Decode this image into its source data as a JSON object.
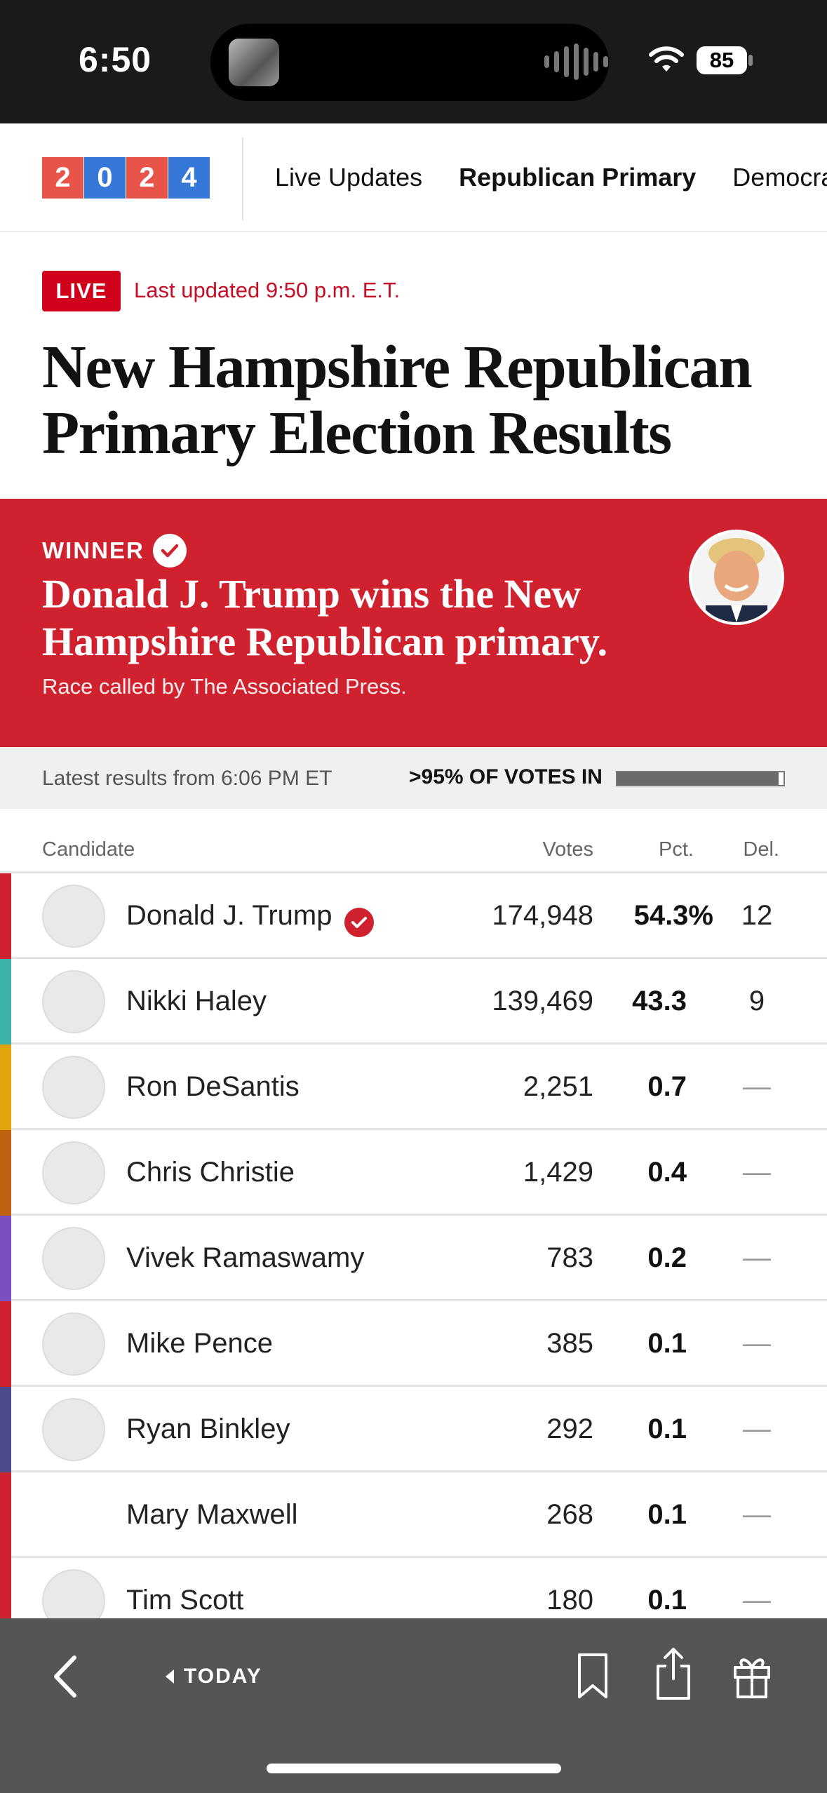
{
  "status_bar": {
    "time": "6:50",
    "battery": "85",
    "icons": [
      "now-playing-thumbnail",
      "audio-waveform-icon",
      "wifi-icon",
      "battery-icon"
    ]
  },
  "nav": {
    "logo_digits": [
      "2",
      "0",
      "2",
      "4"
    ],
    "links": [
      "Live Updates",
      "Republican Primary",
      "Democra"
    ],
    "active_index": 1
  },
  "header": {
    "live_badge": "LIVE",
    "last_updated": "Last updated 9:50 p.m. E.T.",
    "title": "New Hampshire Republican Primary Election Results"
  },
  "winner_banner": {
    "label": "WINNER",
    "headline": "Donald J. Trump wins the New Hampshire Republican primary.",
    "subtext": "Race called by The Associated Press.",
    "color": "#d0212e"
  },
  "results_strip": {
    "latest": "Latest results from 6:06 PM ET",
    "votes_in": ">95% OF VOTES IN",
    "votes_in_fraction": 0.97
  },
  "table": {
    "headers": {
      "candidate": "Candidate",
      "votes": "Votes",
      "pct": "Pct.",
      "del": "Del."
    },
    "rows": [
      {
        "name": "Donald J. Trump",
        "votes": "174,948",
        "pct": "54.3%",
        "del": "12",
        "color": "#d0212e",
        "winner": true,
        "avatar": true
      },
      {
        "name": "Nikki Haley",
        "votes": "139,469",
        "pct": "43.3",
        "del": "9",
        "color": "#3bb3a8",
        "winner": false,
        "avatar": true
      },
      {
        "name": "Ron DeSantis",
        "votes": "2,251",
        "pct": "0.7",
        "del": "—",
        "color": "#e2a40b",
        "winner": false,
        "avatar": true
      },
      {
        "name": "Chris Christie",
        "votes": "1,429",
        "pct": "0.4",
        "del": "—",
        "color": "#c0610f",
        "winner": false,
        "avatar": true
      },
      {
        "name": "Vivek Ramaswamy",
        "votes": "783",
        "pct": "0.2",
        "del": "—",
        "color": "#7a4fc1",
        "winner": false,
        "avatar": true
      },
      {
        "name": "Mike Pence",
        "votes": "385",
        "pct": "0.1",
        "del": "—",
        "color": "#d0212e",
        "winner": false,
        "avatar": true
      },
      {
        "name": "Ryan Binkley",
        "votes": "292",
        "pct": "0.1",
        "del": "—",
        "color": "#4d4a8e",
        "winner": false,
        "avatar": true
      },
      {
        "name": "Mary Maxwell",
        "votes": "268",
        "pct": "0.1",
        "del": "—",
        "color": "#d0212e",
        "winner": false,
        "avatar": false
      },
      {
        "name": "Tim Scott",
        "votes": "180",
        "pct": "0.1",
        "del": "—",
        "color": "#d0212e",
        "winner": false,
        "avatar": true
      }
    ]
  },
  "toolbar": {
    "today_label": "TODAY",
    "icons": [
      "back-icon",
      "bookmark-icon",
      "share-icon",
      "gift-icon"
    ]
  }
}
